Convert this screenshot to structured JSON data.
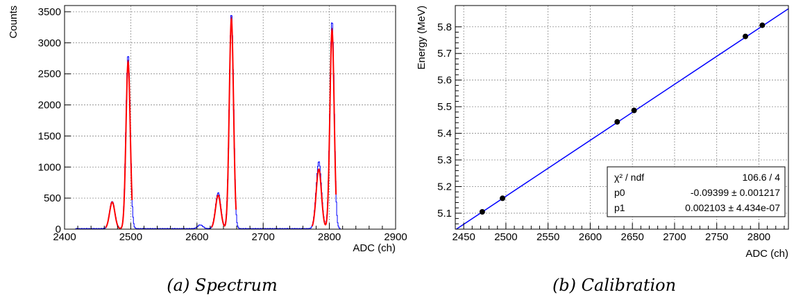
{
  "captions": {
    "left": "(a) Spectrum",
    "right": "(b) Calibration"
  },
  "chart_data": [
    {
      "type": "line",
      "xlabel": "ADC (ch)",
      "ylabel": "Counts",
      "xlim": [
        2400,
        2900
      ],
      "ylim": [
        0,
        3600
      ],
      "xticks": [
        2400,
        2500,
        2600,
        2700,
        2800,
        2900
      ],
      "yticks": [
        0,
        500,
        1000,
        1500,
        2000,
        2500,
        3000,
        3500
      ],
      "grid": true,
      "series": [
        {
          "color": "#0000ff",
          "peaks": [
            {
              "mu": 2472,
              "sigma": 4.0,
              "amp": 440
            },
            {
              "mu": 2496,
              "sigma": 3.2,
              "amp": 2800
            },
            {
              "mu": 2605,
              "sigma": 4.0,
              "amp": 60
            },
            {
              "mu": 2632,
              "sigma": 4.0,
              "amp": 580
            },
            {
              "mu": 2652,
              "sigma": 3.2,
              "amp": 3470
            },
            {
              "mu": 2784,
              "sigma": 4.0,
              "amp": 1080
            },
            {
              "mu": 2804,
              "sigma": 3.2,
              "amp": 3350
            }
          ]
        },
        {
          "color": "#ff0000",
          "segments": [
            {
              "from": 2462,
              "to": 2502,
              "peaks": [
                {
                  "mu": 2472,
                  "sigma": 4.0,
                  "amp": 430
                },
                {
                  "mu": 2496,
                  "sigma": 3.2,
                  "amp": 2690
                }
              ]
            },
            {
              "from": 2622,
              "to": 2659,
              "peaks": [
                {
                  "mu": 2632,
                  "sigma": 4.0,
                  "amp": 540
                },
                {
                  "mu": 2652,
                  "sigma": 3.2,
                  "amp": 3380
                }
              ]
            },
            {
              "from": 2774,
              "to": 2810,
              "peaks": [
                {
                  "mu": 2784,
                  "sigma": 4.0,
                  "amp": 960
                },
                {
                  "mu": 2804,
                  "sigma": 3.2,
                  "amp": 3200
                }
              ]
            }
          ]
        }
      ]
    },
    {
      "type": "scatter",
      "xlabel": "ADC (ch)",
      "ylabel": "Energy (MeV)",
      "xlim": [
        2440,
        2835
      ],
      "ylim": [
        5.04,
        5.88
      ],
      "xticks": [
        2450,
        2500,
        2550,
        2600,
        2650,
        2700,
        2750,
        2800
      ],
      "yticks": [
        "5.1",
        "5.2",
        "5.3",
        "5.4",
        "5.5",
        "5.6",
        "5.7",
        "5.8"
      ],
      "grid": true,
      "points": [
        {
          "x": 2472,
          "y": 5.105
        },
        {
          "x": 2496,
          "y": 5.156
        },
        {
          "x": 2632,
          "y": 5.443
        },
        {
          "x": 2652,
          "y": 5.486
        },
        {
          "x": 2784,
          "y": 5.764
        },
        {
          "x": 2804,
          "y": 5.806
        }
      ],
      "fit": {
        "p0": -0.09399,
        "p1": 0.002103,
        "color": "#0000ff"
      },
      "stats": {
        "rows": [
          {
            "label": "χ² / ndf",
            "value": "106.6 / 4"
          },
          {
            "label": "p0",
            "value": "-0.09399 ± 0.001217"
          },
          {
            "label": "p1",
            "value": "0.002103 ± 4.434e-07"
          }
        ]
      }
    }
  ]
}
